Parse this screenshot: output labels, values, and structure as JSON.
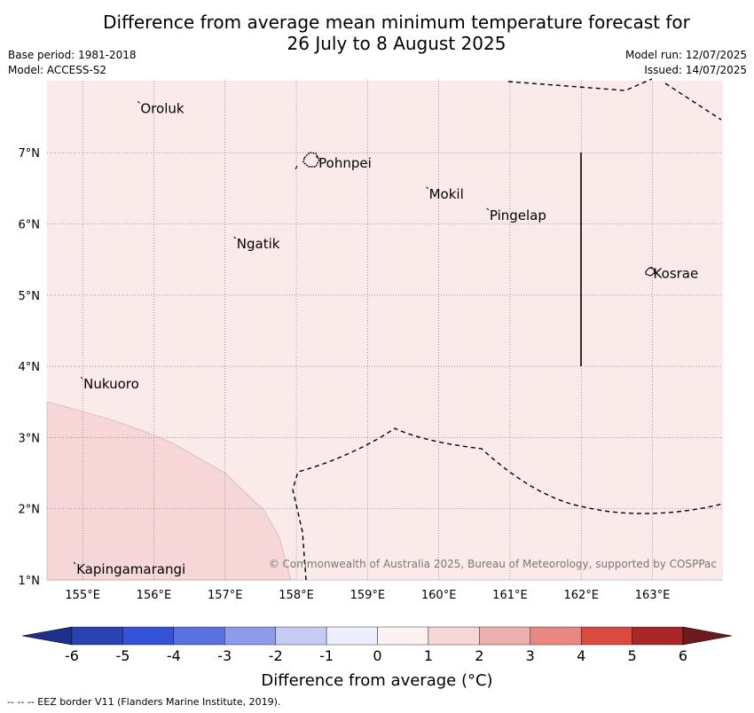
{
  "title_line1": "Difference from average mean minimum temperature forecast for",
  "title_line2": "26 July to 8 August 2025",
  "base_period": "Base period: 1981-2018",
  "model": "Model: ACCESS-S2",
  "model_run": "Model run: 12/07/2025",
  "issued": "Issued: 14/07/2025",
  "copyright": "© Commonwealth of Australia 2025, Bureau of Meteorology, supported by COSPPac",
  "colorbar_label": "Difference from average (°C)",
  "footnote": "-- -- -- EEZ border V11 (Flanders Marine Institute, 2019).",
  "lon_ticks": [
    "155°E",
    "156°E",
    "157°E",
    "158°E",
    "159°E",
    "160°E",
    "161°E",
    "162°E",
    "163°E"
  ],
  "lat_ticks": [
    "7°N",
    "6°N",
    "5°N",
    "4°N",
    "3°N",
    "2°N",
    "1°N"
  ],
  "places": [
    {
      "name": "Oroluk",
      "lon": 155.8,
      "lat": 7.62
    },
    {
      "name": "Pohnpei",
      "lon": 158.3,
      "lat": 6.85
    },
    {
      "name": "Mokil",
      "lon": 159.85,
      "lat": 6.42
    },
    {
      "name": "Pingelap",
      "lon": 160.7,
      "lat": 6.12
    },
    {
      "name": "Ngatik",
      "lon": 157.15,
      "lat": 5.72
    },
    {
      "name": "Kosrae",
      "lon": 163.0,
      "lat": 5.3
    },
    {
      "name": "Nukuoro",
      "lon": 155.0,
      "lat": 3.75
    },
    {
      "name": "Kapingamarangi",
      "lon": 154.9,
      "lat": 1.15
    }
  ],
  "colorbar_ticks": [
    "-6",
    "-5",
    "-4",
    "-3",
    "-2",
    "-1",
    "0",
    "1",
    "2",
    "3",
    "4",
    "5",
    "6"
  ],
  "colorbar_colors": [
    "#1f2f8c",
    "#2b43b0",
    "#3653d8",
    "#5a72e0",
    "#8c9ce8",
    "#c5cbf2",
    "#eceefb",
    "#fdf1f1",
    "#f6d6d6",
    "#eeb0ae",
    "#e88880",
    "#db4a3e",
    "#a8282a",
    "#6e1a1f"
  ],
  "map_colors": {
    "background": "#fbeaea",
    "warm_region": "#f6d6d6",
    "grid": "#666666"
  }
}
